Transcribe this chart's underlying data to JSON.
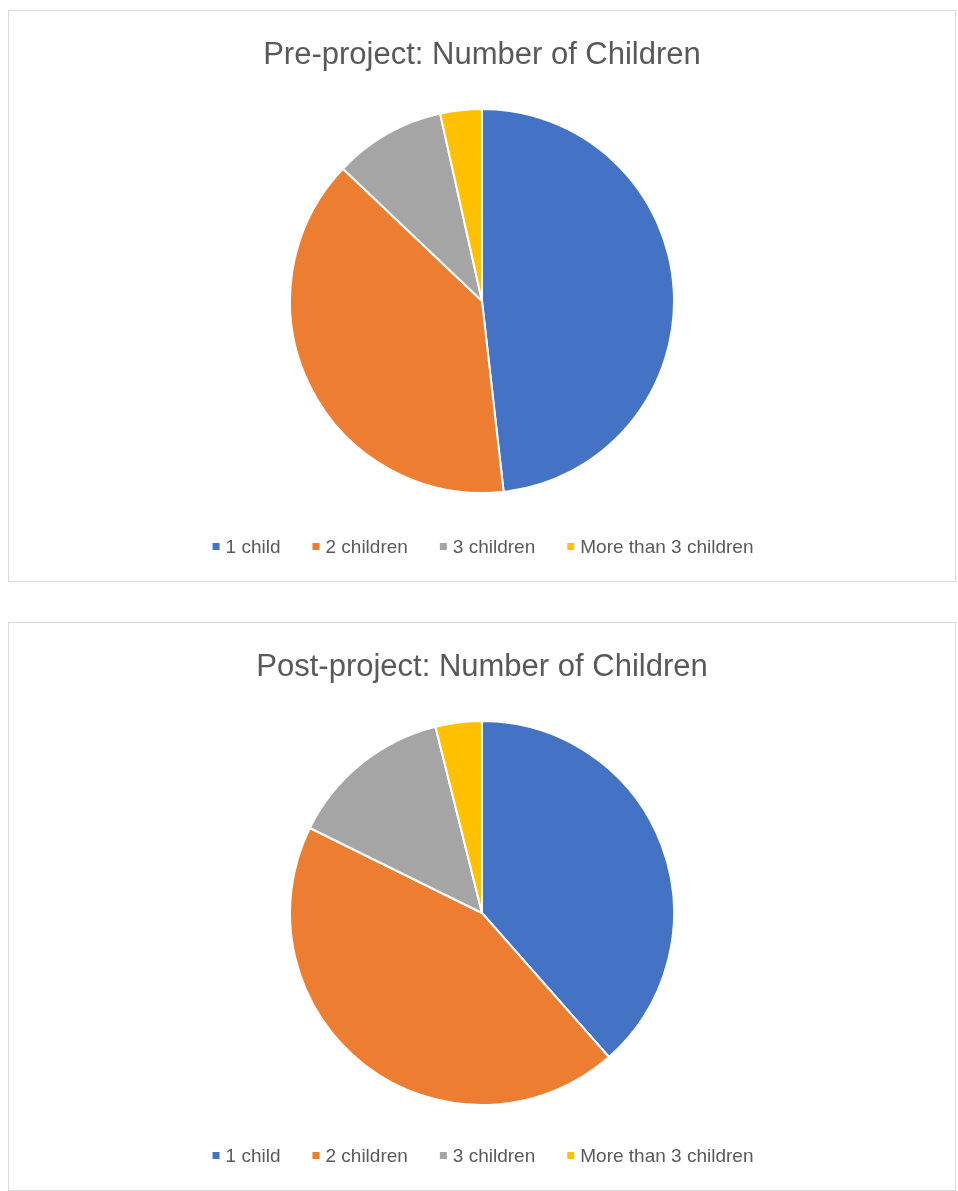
{
  "chart_data": [
    {
      "type": "pie",
      "title": "Pre-project: Number of Children",
      "categories": [
        "1 child",
        "2 children",
        "3 children",
        "More than 3 children"
      ],
      "values": [
        48.2,
        38.9,
        9.4,
        3.5
      ],
      "colors": [
        "#4472c4",
        "#ed7d31",
        "#a5a5a5",
        "#ffc000"
      ],
      "legend": "bottom"
    },
    {
      "type": "pie",
      "title": "Post-project: Number of Children",
      "categories": [
        "1 child",
        "2 children",
        "3 children",
        "More than 3 children"
      ],
      "values": [
        38.5,
        43.8,
        13.8,
        3.9
      ],
      "colors": [
        "#4472c4",
        "#ed7d31",
        "#a5a5a5",
        "#ffc000"
      ],
      "legend": "bottom"
    }
  ]
}
